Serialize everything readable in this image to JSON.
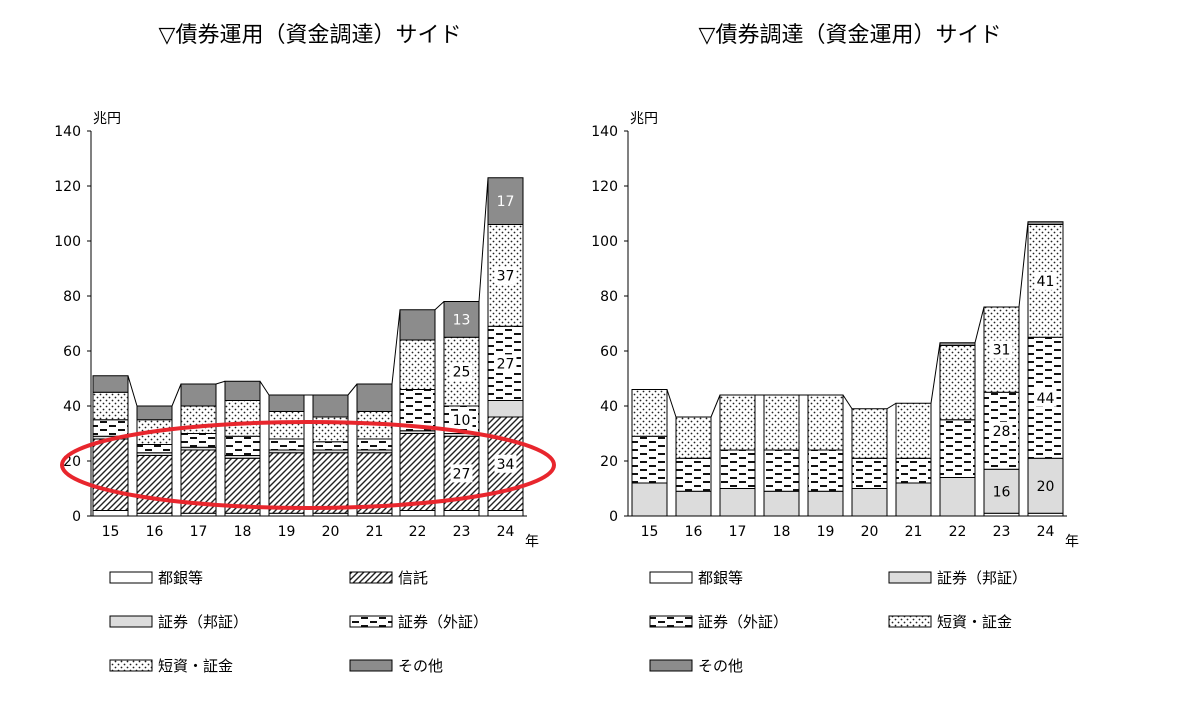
{
  "chart_data": [
    {
      "type": "stacked-bar",
      "title": "▽債券運用（資金調達）サイド",
      "ylabel": "兆円",
      "xlabel": "年",
      "ylim": [
        0,
        140
      ],
      "yticks": [
        0,
        20,
        40,
        60,
        80,
        100,
        120,
        140
      ],
      "categories": [
        "15",
        "16",
        "17",
        "18",
        "19",
        "20",
        "21",
        "22",
        "23",
        "24"
      ],
      "series": [
        {
          "name": "都銀等",
          "pattern": "plain",
          "values": [
            2,
            1,
            1,
            1,
            1,
            1,
            1,
            2,
            2,
            2
          ]
        },
        {
          "name": "信託",
          "pattern": "hatch",
          "values": [
            26,
            21,
            23,
            20,
            22,
            22,
            22,
            28,
            27,
            34
          ]
        },
        {
          "name": "証券（邦証）",
          "pattern": "gray",
          "values": [
            1,
            1,
            1,
            1,
            1,
            1,
            1,
            1,
            1,
            6
          ]
        },
        {
          "name": "証券（外証）",
          "pattern": "dash",
          "values": [
            6,
            3,
            5,
            7,
            4,
            3,
            4,
            15,
            10,
            27
          ]
        },
        {
          "name": "短資・証金",
          "pattern": "dots",
          "values": [
            10,
            9,
            10,
            13,
            10,
            9,
            10,
            18,
            25,
            37
          ]
        },
        {
          "name": "その他",
          "pattern": "dark",
          "values": [
            6,
            5,
            8,
            7,
            6,
            8,
            10,
            11,
            13,
            17
          ]
        }
      ],
      "data_labels": [
        {
          "category": "23",
          "series": "信託",
          "value": "27"
        },
        {
          "category": "23",
          "series": "証券（外証）",
          "value": "10"
        },
        {
          "category": "23",
          "series": "短資・証金",
          "value": "25"
        },
        {
          "category": "23",
          "series": "その他",
          "value": "13"
        },
        {
          "category": "24",
          "series": "信託",
          "value": "34"
        },
        {
          "category": "24",
          "series": "証券（外証）",
          "value": "27"
        },
        {
          "category": "24",
          "series": "短資・証金",
          "value": "37"
        },
        {
          "category": "24",
          "series": "その他",
          "value": "17"
        }
      ],
      "legend": [
        {
          "name": "都銀等",
          "pattern": "plain"
        },
        {
          "name": "信託",
          "pattern": "hatch"
        },
        {
          "name": "証券（邦証）",
          "pattern": "gray"
        },
        {
          "name": "証券（外証）",
          "pattern": "dash"
        },
        {
          "name": "短資・証金",
          "pattern": "dots"
        },
        {
          "name": "その他",
          "pattern": "dark"
        }
      ],
      "annotation": {
        "type": "ellipse",
        "color": "#e8262d",
        "encloses": "信託"
      }
    },
    {
      "type": "stacked-bar",
      "title": "▽債券調達（資金運用）サイド",
      "ylabel": "兆円",
      "xlabel": "年",
      "ylim": [
        0,
        140
      ],
      "yticks": [
        0,
        20,
        40,
        60,
        80,
        100,
        120,
        140
      ],
      "categories": [
        "15",
        "16",
        "17",
        "18",
        "19",
        "20",
        "21",
        "22",
        "23",
        "24"
      ],
      "series": [
        {
          "name": "都銀等",
          "pattern": "plain",
          "values": [
            0,
            0,
            0,
            0,
            0,
            0,
            0,
            0,
            1,
            1
          ]
        },
        {
          "name": "証券（邦証）",
          "pattern": "gray",
          "values": [
            12,
            9,
            10,
            9,
            9,
            10,
            12,
            14,
            16,
            20
          ]
        },
        {
          "name": "証券（外証）",
          "pattern": "dash",
          "values": [
            17,
            12,
            14,
            15,
            15,
            11,
            9,
            21,
            28,
            44
          ]
        },
        {
          "name": "短資・証金",
          "pattern": "dots",
          "values": [
            17,
            15,
            20,
            20,
            20,
            18,
            20,
            27,
            31,
            41
          ]
        },
        {
          "name": "その他",
          "pattern": "dark",
          "values": [
            0,
            0,
            0,
            0,
            0,
            0,
            0,
            1,
            0,
            1
          ]
        }
      ],
      "data_labels": [
        {
          "category": "23",
          "series": "証券（邦証）",
          "value": "16"
        },
        {
          "category": "23",
          "series": "証券（外証）",
          "value": "28"
        },
        {
          "category": "23",
          "series": "短資・証金",
          "value": "31"
        },
        {
          "category": "24",
          "series": "証券（邦証）",
          "value": "20"
        },
        {
          "category": "24",
          "series": "証券（外証）",
          "value": "44"
        },
        {
          "category": "24",
          "series": "短資・証金",
          "value": "41"
        }
      ],
      "legend": [
        {
          "name": "都銀等",
          "pattern": "plain"
        },
        {
          "name": "証券（邦証）",
          "pattern": "gray"
        },
        {
          "name": "証券（外証）",
          "pattern": "dash"
        },
        {
          "name": "短資・証金",
          "pattern": "dots"
        },
        {
          "name": "その他",
          "pattern": "dark"
        }
      ]
    }
  ],
  "colors": {
    "gray_fill": "#dcdcdc",
    "dark_fill": "#8c8c8c",
    "ellipse": "#e8262d",
    "label_on_dark": "#ffffff"
  }
}
